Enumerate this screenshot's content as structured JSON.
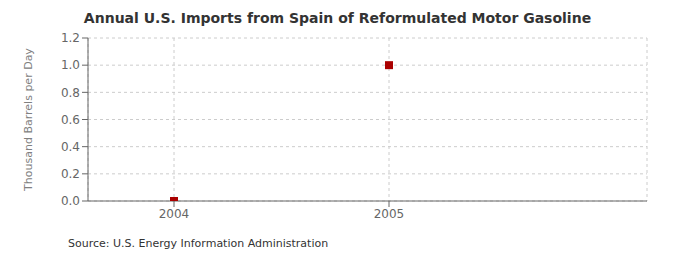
{
  "chart_data": {
    "type": "scatter",
    "title": "Annual U.S. Imports from Spain of Reformulated Motor Gasoline",
    "ylabel": "Thousand Barrels per Day",
    "source": "Source: U.S. Energy Information Administration",
    "x": [
      2004,
      2005
    ],
    "values": [
      0.0,
      1.0
    ],
    "xlim": [
      2003.6,
      2006.2
    ],
    "ylim": [
      0.0,
      1.2
    ],
    "xticks": [
      2004,
      2005
    ],
    "yticks": [
      {
        "value": 0.0,
        "label": "0.0"
      },
      0.2,
      0.4,
      0.6,
      0.8,
      {
        "value": 1.0,
        "label": "1.0"
      },
      1.2
    ],
    "grid": true,
    "marker": "square",
    "color": "#aa0000"
  }
}
